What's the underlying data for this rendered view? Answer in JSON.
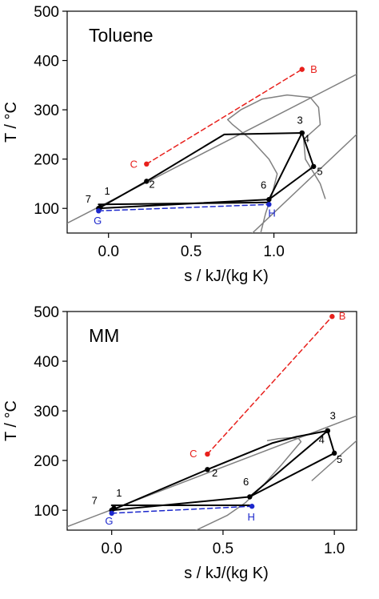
{
  "chart_data": [
    {
      "type": "line",
      "title": "Toluene",
      "xlabel": "s / kJ/(kg K)",
      "ylabel": "T / °C",
      "xlim": [
        -0.25,
        1.5
      ],
      "ylim": [
        50,
        500
      ],
      "xticks": [
        0.0,
        0.5,
        1.0
      ],
      "yticks": [
        100,
        200,
        300,
        400,
        500
      ],
      "xtick_labels": [
        "0.0",
        "0.5",
        "1.0"
      ],
      "ytick_labels": [
        "100",
        "200",
        "300",
        "400",
        "500"
      ],
      "colors": {
        "cycle": "#000000",
        "dome": "#808080",
        "heat_source": "#e8201c",
        "heat_sink": "#1c28cc"
      },
      "series": [
        {
          "role": "isobar-low",
          "color": "#808080",
          "style": "solid",
          "width": 1.5,
          "x": [
            -0.25,
            1.5
          ],
          "y": [
            70,
            372
          ]
        },
        {
          "role": "isobar-high",
          "color": "#808080",
          "style": "solid",
          "width": 1.5,
          "x": [
            0.87,
            1.5
          ],
          "y": [
            50,
            250
          ]
        },
        {
          "role": "saturation-dome",
          "color": "#808080",
          "style": "solid",
          "width": 1.5,
          "x": [
            0.92,
            0.95,
            0.99,
            1.02,
            0.97,
            0.86,
            0.75,
            0.72,
            0.8,
            0.93,
            1.08,
            1.22,
            1.27,
            1.28,
            1.24,
            1.18,
            1.19,
            1.28,
            1.31
          ],
          "y": [
            50,
            90,
            130,
            170,
            200,
            240,
            270,
            280,
            300,
            322,
            330,
            325,
            305,
            270,
            258,
            240,
            200,
            150,
            120
          ]
        },
        {
          "role": "cycle",
          "color": "#000000",
          "style": "solid",
          "width": 2,
          "x": [
            -0.06,
            0.23,
            0.7,
            1.17,
            1.24,
            0.97,
            -0.06
          ],
          "y": [
            100,
            155,
            250,
            253,
            185,
            118,
            100
          ]
        },
        {
          "role": "cycle-isobar",
          "color": "#000000",
          "style": "solid",
          "width": 2,
          "x": [
            1.17,
            0.97
          ],
          "y": [
            253,
            118
          ]
        },
        {
          "role": "cycle-liquid",
          "color": "#000000",
          "style": "solid",
          "width": 2,
          "x": [
            -0.06,
            0.97
          ],
          "y": [
            108,
            112
          ]
        },
        {
          "role": "heat-source",
          "color": "#e8201c",
          "style": "dashed",
          "width": 1.5,
          "x": [
            0.23,
            1.17
          ],
          "y": [
            190,
            382
          ]
        },
        {
          "role": "heat-sink",
          "color": "#1c28cc",
          "style": "dashed",
          "width": 1.5,
          "x": [
            -0.06,
            0.97
          ],
          "y": [
            95,
            108
          ]
        }
      ],
      "points": [
        {
          "label": "1",
          "x": -0.05,
          "y": 102,
          "color": "#000000",
          "lx": -0.025,
          "ly": 128,
          "anchor": "start"
        },
        {
          "label": "2",
          "x": 0.23,
          "y": 155,
          "color": "#000000",
          "lx": 0.245,
          "ly": 142,
          "anchor": "start"
        },
        {
          "label": "3",
          "x": 1.17,
          "y": 253,
          "color": "#000000",
          "lx": 1.14,
          "ly": 272,
          "anchor": "start"
        },
        {
          "label": "4",
          "x": 1.17,
          "y": 253,
          "color": "#000000",
          "lx": 1.18,
          "ly": 234,
          "anchor": "start"
        },
        {
          "label": "5",
          "x": 1.24,
          "y": 185,
          "color": "#000000",
          "lx": 1.26,
          "ly": 168,
          "anchor": "start"
        },
        {
          "label": "6",
          "x": 0.97,
          "y": 118,
          "color": "#000000",
          "lx": 0.92,
          "ly": 140,
          "anchor": "start"
        },
        {
          "label": "7",
          "x": -0.06,
          "y": 100,
          "color": "#000000",
          "lx": -0.14,
          "ly": 112,
          "anchor": "start"
        },
        {
          "label": "B",
          "x": 1.17,
          "y": 382,
          "color": "#e8201c",
          "lx": 1.22,
          "ly": 375,
          "anchor": "start"
        },
        {
          "label": "C",
          "x": 0.23,
          "y": 190,
          "color": "#e8201c",
          "lx": 0.13,
          "ly": 182,
          "anchor": "start"
        },
        {
          "label": "G",
          "x": -0.06,
          "y": 95,
          "color": "#1c28cc",
          "lx": -0.09,
          "ly": 68,
          "anchor": "start"
        },
        {
          "label": "H",
          "x": 0.97,
          "y": 108,
          "color": "#1c28cc",
          "lx": 0.965,
          "ly": 83,
          "anchor": "start"
        }
      ]
    },
    {
      "type": "line",
      "title": "MM",
      "xlabel": "s / kJ/(kg K)",
      "ylabel": "T / °C",
      "xlim": [
        -0.2,
        1.1
      ],
      "ylim": [
        60,
        500
      ],
      "xticks": [
        0.0,
        0.5,
        1.0
      ],
      "yticks": [
        100,
        200,
        300,
        400,
        500
      ],
      "xtick_labels": [
        "0.0",
        "0.5",
        "1.0"
      ],
      "ytick_labels": [
        "100",
        "200",
        "300",
        "400",
        "500"
      ],
      "colors": {
        "cycle": "#000000",
        "dome": "#808080",
        "heat_source": "#e8201c",
        "heat_sink": "#1c28cc"
      },
      "series": [
        {
          "role": "isobar-low",
          "color": "#808080",
          "style": "solid",
          "width": 1.5,
          "x": [
            -0.2,
            1.1
          ],
          "y": [
            67,
            290
          ]
        },
        {
          "role": "isobar-high",
          "color": "#808080",
          "style": "solid",
          "width": 1.5,
          "x": [
            0.9,
            1.1
          ],
          "y": [
            160,
            240
          ]
        },
        {
          "role": "saturation-dome",
          "color": "#808080",
          "style": "solid",
          "width": 1.5,
          "x": [
            0.38,
            0.52,
            0.6,
            0.68,
            0.76,
            0.82,
            0.85,
            0.84,
            0.8,
            0.75,
            0.7
          ],
          "y": [
            60,
            90,
            115,
            150,
            190,
            222,
            238,
            244,
            246,
            244,
            240
          ]
        },
        {
          "role": "cycle",
          "color": "#000000",
          "style": "solid",
          "width": 2,
          "x": [
            0.0,
            0.43,
            0.72,
            0.83,
            0.97,
            1.0,
            0.62,
            0.0
          ],
          "y": [
            100,
            182,
            235,
            248,
            260,
            215,
            127,
            100
          ]
        },
        {
          "role": "cycle-isobar",
          "color": "#000000",
          "style": "solid",
          "width": 2,
          "x": [
            0.97,
            0.62
          ],
          "y": [
            260,
            127
          ]
        },
        {
          "role": "cycle-liquid",
          "color": "#000000",
          "style": "solid",
          "width": 2,
          "x": [
            0.0,
            0.62
          ],
          "y": [
            110,
            110
          ]
        },
        {
          "role": "heat-source",
          "color": "#e8201c",
          "style": "dashed",
          "width": 1.5,
          "x": [
            0.43,
            0.99
          ],
          "y": [
            213,
            490
          ]
        },
        {
          "role": "heat-sink",
          "color": "#1c28cc",
          "style": "dashed",
          "width": 1.5,
          "x": [
            0.0,
            0.63
          ],
          "y": [
            94,
            108
          ]
        }
      ],
      "points": [
        {
          "label": "1",
          "x": 0.01,
          "y": 104,
          "color": "#000000",
          "lx": 0.02,
          "ly": 128,
          "anchor": "start"
        },
        {
          "label": "2",
          "x": 0.43,
          "y": 182,
          "color": "#000000",
          "lx": 0.45,
          "ly": 168,
          "anchor": "start"
        },
        {
          "label": "3",
          "x": 0.97,
          "y": 260,
          "color": "#000000",
          "lx": 0.98,
          "ly": 283,
          "anchor": "start"
        },
        {
          "label": "4",
          "x": 0.97,
          "y": 260,
          "color": "#000000",
          "lx": 0.93,
          "ly": 235,
          "anchor": "start"
        },
        {
          "label": "5",
          "x": 1.0,
          "y": 215,
          "color": "#000000",
          "lx": 1.01,
          "ly": 195,
          "anchor": "start"
        },
        {
          "label": "6",
          "x": 0.62,
          "y": 127,
          "color": "#000000",
          "lx": 0.59,
          "ly": 150,
          "anchor": "start"
        },
        {
          "label": "7",
          "x": 0.0,
          "y": 100,
          "color": "#000000",
          "lx": -0.09,
          "ly": 112,
          "anchor": "start"
        },
        {
          "label": "B",
          "x": 0.99,
          "y": 490,
          "color": "#e8201c",
          "lx": 1.02,
          "ly": 484,
          "anchor": "start"
        },
        {
          "label": "C",
          "x": 0.43,
          "y": 213,
          "color": "#e8201c",
          "lx": 0.35,
          "ly": 207,
          "anchor": "start"
        },
        {
          "label": "G",
          "x": 0.0,
          "y": 94,
          "color": "#1c28cc",
          "lx": -0.03,
          "ly": 71,
          "anchor": "start"
        },
        {
          "label": "H",
          "x": 0.63,
          "y": 108,
          "color": "#1c28cc",
          "lx": 0.61,
          "ly": 79,
          "anchor": "start"
        }
      ]
    }
  ]
}
